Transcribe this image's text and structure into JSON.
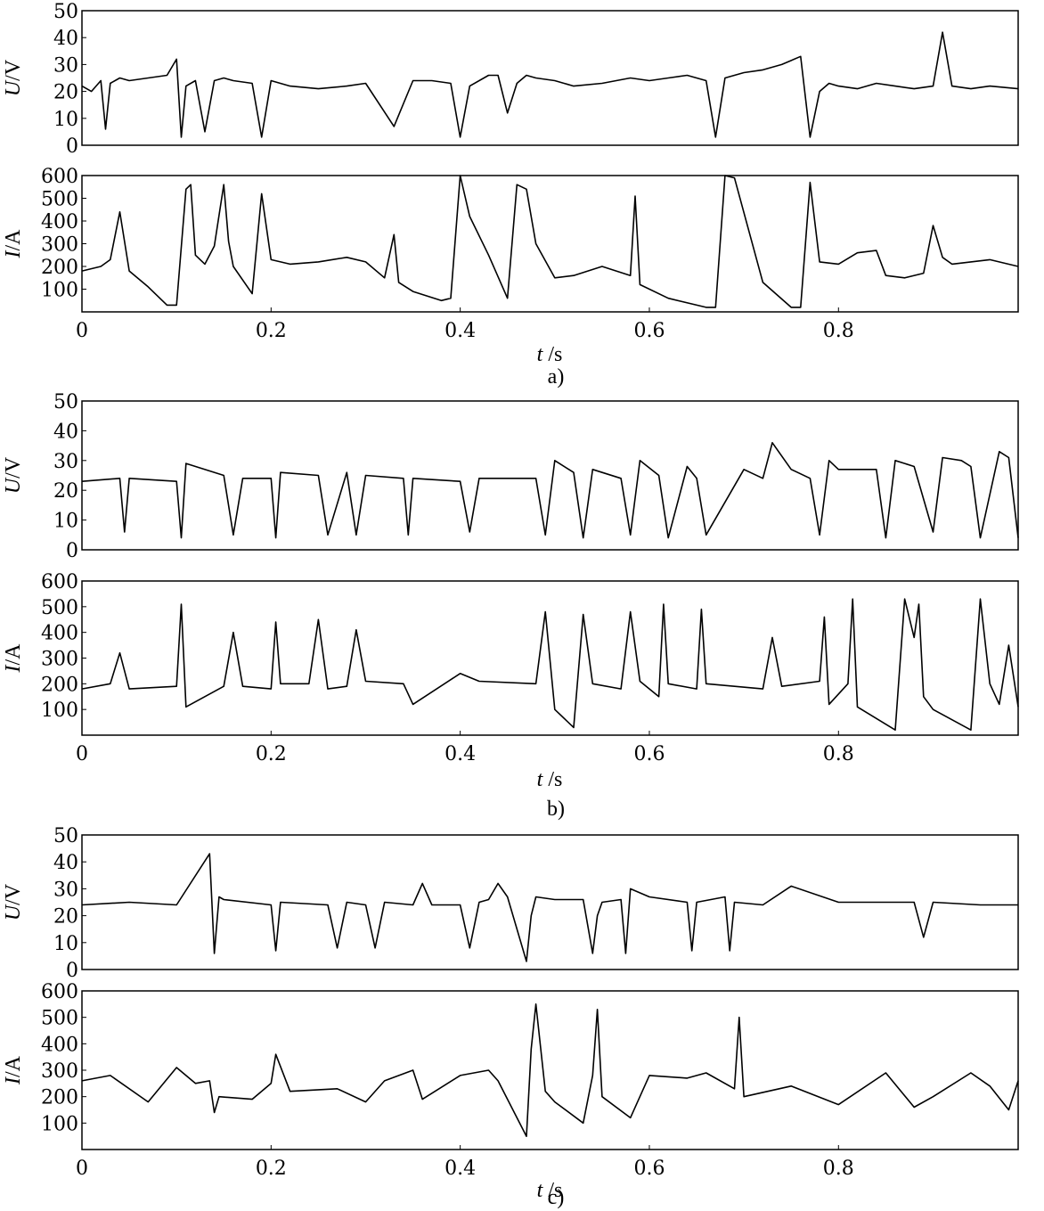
{
  "chart_data": [
    {
      "panel": "a)",
      "type": "line",
      "xlabel_var": "t",
      "xlabel_unit": "/s",
      "xlim": [
        0,
        0.99
      ],
      "xticks": [
        "0",
        "0.2",
        "0.4",
        "0.6",
        "0.8"
      ],
      "voltage": {
        "ylabel_var": "U",
        "ylabel_unit": "/V",
        "ylim": [
          0,
          50
        ],
        "yticks": [
          "0",
          "10",
          "20",
          "30",
          "40",
          "50"
        ],
        "x": [
          0,
          0.01,
          0.02,
          0.025,
          0.03,
          0.04,
          0.05,
          0.07,
          0.09,
          0.1,
          0.105,
          0.11,
          0.12,
          0.13,
          0.14,
          0.15,
          0.16,
          0.18,
          0.19,
          0.2,
          0.22,
          0.25,
          0.28,
          0.3,
          0.33,
          0.35,
          0.37,
          0.39,
          0.4,
          0.41,
          0.43,
          0.44,
          0.45,
          0.46,
          0.47,
          0.48,
          0.5,
          0.52,
          0.55,
          0.58,
          0.6,
          0.62,
          0.64,
          0.66,
          0.67,
          0.68,
          0.7,
          0.72,
          0.74,
          0.76,
          0.77,
          0.78,
          0.79,
          0.8,
          0.82,
          0.84,
          0.86,
          0.88,
          0.9,
          0.91,
          0.92,
          0.94,
          0.96,
          0.99
        ],
        "y": [
          22,
          20,
          24,
          6,
          23,
          25,
          24,
          25,
          26,
          32,
          3,
          22,
          24,
          5,
          24,
          25,
          24,
          23,
          3,
          24,
          22,
          21,
          22,
          23,
          7,
          24,
          24,
          23,
          3,
          22,
          26,
          26,
          12,
          23,
          26,
          25,
          24,
          22,
          23,
          25,
          24,
          25,
          26,
          24,
          3,
          25,
          27,
          28,
          30,
          33,
          3,
          20,
          23,
          22,
          21,
          23,
          22,
          21,
          22,
          42,
          22,
          21,
          22,
          21
        ]
      },
      "current": {
        "ylabel_var": "I",
        "ylabel_unit": "/A",
        "ylim": [
          0,
          600
        ],
        "yticks": [
          "100",
          "200",
          "300",
          "400",
          "500",
          "600"
        ],
        "x": [
          0,
          0.02,
          0.03,
          0.04,
          0.05,
          0.07,
          0.09,
          0.1,
          0.11,
          0.115,
          0.12,
          0.13,
          0.14,
          0.15,
          0.155,
          0.16,
          0.18,
          0.19,
          0.2,
          0.22,
          0.25,
          0.28,
          0.3,
          0.32,
          0.33,
          0.335,
          0.35,
          0.38,
          0.39,
          0.4,
          0.41,
          0.43,
          0.45,
          0.46,
          0.47,
          0.48,
          0.5,
          0.52,
          0.55,
          0.58,
          0.585,
          0.59,
          0.62,
          0.66,
          0.67,
          0.68,
          0.69,
          0.72,
          0.75,
          0.76,
          0.77,
          0.78,
          0.8,
          0.82,
          0.84,
          0.85,
          0.87,
          0.89,
          0.9,
          0.91,
          0.92,
          0.94,
          0.96,
          0.99
        ],
        "y": [
          180,
          200,
          230,
          440,
          180,
          110,
          30,
          30,
          540,
          560,
          250,
          210,
          290,
          560,
          310,
          200,
          80,
          520,
          230,
          210,
          220,
          240,
          220,
          150,
          340,
          130,
          90,
          50,
          60,
          600,
          420,
          250,
          60,
          560,
          540,
          300,
          150,
          160,
          200,
          160,
          510,
          120,
          60,
          20,
          20,
          600,
          590,
          130,
          20,
          20,
          570,
          220,
          210,
          260,
          270,
          160,
          150,
          170,
          380,
          240,
          210,
          220,
          230,
          200
        ]
      }
    },
    {
      "panel": "b)",
      "type": "line",
      "xlabel_var": "t",
      "xlabel_unit": "/s",
      "xlim": [
        0,
        0.99
      ],
      "xticks": [
        "0",
        "0.2",
        "0.4",
        "0.6",
        "0.8"
      ],
      "voltage": {
        "ylabel_var": "U",
        "ylabel_unit": "/V",
        "ylim": [
          0,
          50
        ],
        "yticks": [
          "0",
          "10",
          "20",
          "30",
          "40",
          "50"
        ],
        "x": [
          0,
          0.04,
          0.045,
          0.05,
          0.1,
          0.105,
          0.11,
          0.15,
          0.16,
          0.17,
          0.2,
          0.205,
          0.21,
          0.25,
          0.26,
          0.28,
          0.29,
          0.3,
          0.34,
          0.345,
          0.35,
          0.4,
          0.41,
          0.42,
          0.48,
          0.49,
          0.5,
          0.52,
          0.53,
          0.54,
          0.57,
          0.58,
          0.59,
          0.61,
          0.62,
          0.64,
          0.65,
          0.66,
          0.7,
          0.72,
          0.73,
          0.75,
          0.77,
          0.78,
          0.79,
          0.8,
          0.84,
          0.85,
          0.86,
          0.88,
          0.9,
          0.91,
          0.93,
          0.94,
          0.95,
          0.97,
          0.98,
          0.99
        ],
        "y": [
          23,
          24,
          6,
          24,
          23,
          4,
          29,
          25,
          5,
          24,
          24,
          4,
          26,
          25,
          5,
          26,
          5,
          25,
          24,
          5,
          24,
          23,
          6,
          24,
          24,
          5,
          30,
          26,
          4,
          27,
          24,
          5,
          30,
          25,
          4,
          28,
          24,
          5,
          27,
          24,
          36,
          27,
          24,
          5,
          30,
          27,
          27,
          4,
          30,
          28,
          6,
          31,
          30,
          28,
          4,
          33,
          31,
          4
        ]
      },
      "current": {
        "ylabel_var": "I",
        "ylabel_unit": "/A",
        "ylim": [
          0,
          600
        ],
        "yticks": [
          "100",
          "200",
          "300",
          "400",
          "500",
          "600"
        ],
        "x": [
          0,
          0.03,
          0.04,
          0.05,
          0.1,
          0.105,
          0.11,
          0.15,
          0.16,
          0.17,
          0.2,
          0.205,
          0.21,
          0.24,
          0.25,
          0.26,
          0.28,
          0.29,
          0.3,
          0.34,
          0.35,
          0.4,
          0.42,
          0.48,
          0.49,
          0.5,
          0.52,
          0.53,
          0.54,
          0.57,
          0.58,
          0.59,
          0.61,
          0.615,
          0.62,
          0.65,
          0.655,
          0.66,
          0.72,
          0.73,
          0.74,
          0.78,
          0.785,
          0.79,
          0.81,
          0.815,
          0.82,
          0.86,
          0.87,
          0.88,
          0.885,
          0.89,
          0.9,
          0.94,
          0.95,
          0.96,
          0.97,
          0.98,
          0.99
        ],
        "y": [
          180,
          200,
          320,
          180,
          190,
          510,
          110,
          190,
          400,
          190,
          180,
          440,
          200,
          200,
          450,
          180,
          190,
          410,
          210,
          200,
          120,
          240,
          210,
          200,
          480,
          100,
          30,
          470,
          200,
          180,
          480,
          210,
          150,
          510,
          200,
          180,
          490,
          200,
          180,
          380,
          190,
          210,
          460,
          120,
          200,
          530,
          110,
          20,
          530,
          380,
          510,
          150,
          100,
          20,
          530,
          200,
          120,
          350,
          110
        ]
      }
    },
    {
      "panel": "c)",
      "type": "line",
      "xlabel_var": "t",
      "xlabel_unit": "/s",
      "xlim": [
        0,
        0.99
      ],
      "xticks": [
        "0",
        "0.2",
        "0.4",
        "0.6",
        "0.8"
      ],
      "voltage": {
        "ylabel_var": "U",
        "ylabel_unit": "/V",
        "ylim": [
          0,
          50
        ],
        "yticks": [
          "0",
          "10",
          "20",
          "30",
          "40",
          "50"
        ],
        "x": [
          0,
          0.05,
          0.1,
          0.135,
          0.14,
          0.145,
          0.15,
          0.2,
          0.205,
          0.21,
          0.26,
          0.27,
          0.28,
          0.3,
          0.31,
          0.32,
          0.35,
          0.36,
          0.37,
          0.4,
          0.41,
          0.42,
          0.43,
          0.44,
          0.45,
          0.47,
          0.475,
          0.48,
          0.5,
          0.53,
          0.54,
          0.545,
          0.55,
          0.57,
          0.575,
          0.58,
          0.6,
          0.64,
          0.645,
          0.65,
          0.68,
          0.685,
          0.69,
          0.72,
          0.75,
          0.8,
          0.85,
          0.88,
          0.89,
          0.9,
          0.95,
          0.99
        ],
        "y": [
          24,
          25,
          24,
          43,
          6,
          27,
          26,
          24,
          7,
          25,
          24,
          8,
          25,
          24,
          8,
          25,
          24,
          32,
          24,
          24,
          8,
          25,
          26,
          32,
          27,
          3,
          20,
          27,
          26,
          26,
          6,
          20,
          25,
          26,
          6,
          30,
          27,
          25,
          7,
          25,
          27,
          7,
          25,
          24,
          31,
          25,
          25,
          25,
          12,
          25,
          24,
          24
        ]
      },
      "current": {
        "ylabel_var": "I",
        "ylabel_unit": "/A",
        "ylim": [
          0,
          600
        ],
        "yticks": [
          "100",
          "200",
          "300",
          "400",
          "500",
          "600"
        ],
        "x": [
          0,
          0.03,
          0.07,
          0.1,
          0.12,
          0.135,
          0.14,
          0.145,
          0.18,
          0.2,
          0.205,
          0.22,
          0.27,
          0.3,
          0.32,
          0.35,
          0.36,
          0.4,
          0.43,
          0.44,
          0.47,
          0.475,
          0.48,
          0.49,
          0.5,
          0.53,
          0.54,
          0.545,
          0.55,
          0.58,
          0.6,
          0.64,
          0.66,
          0.69,
          0.695,
          0.7,
          0.75,
          0.8,
          0.85,
          0.88,
          0.9,
          0.94,
          0.96,
          0.98,
          0.99
        ],
        "y": [
          260,
          280,
          180,
          310,
          250,
          260,
          140,
          200,
          190,
          250,
          360,
          220,
          230,
          180,
          260,
          300,
          190,
          280,
          300,
          260,
          50,
          380,
          550,
          220,
          180,
          100,
          280,
          530,
          200,
          120,
          280,
          270,
          290,
          230,
          500,
          200,
          240,
          170,
          290,
          160,
          200,
          290,
          240,
          150,
          260
        ]
      }
    }
  ],
  "captions": [
    "a)",
    "b)",
    "c)"
  ]
}
